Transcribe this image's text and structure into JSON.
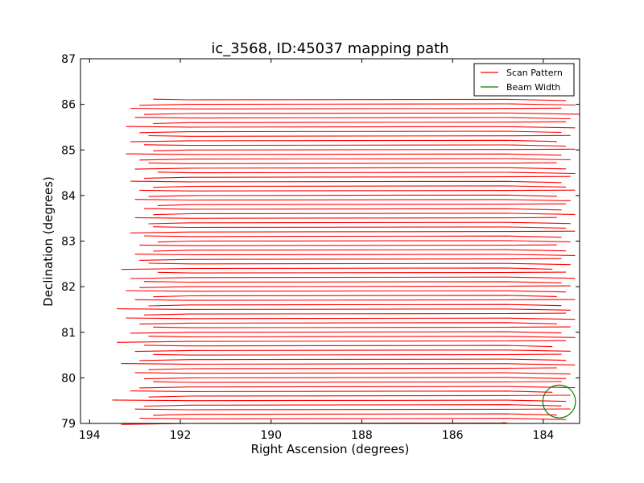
{
  "chart_data": {
    "type": "line",
    "title": "ic_3568, ID:45037 mapping path",
    "xlabel": "Right Ascension (degrees)",
    "ylabel": "Declination (degrees)",
    "xlim": [
      194.2,
      183.2
    ],
    "ylim": [
      79,
      87
    ],
    "x_ticks": [
      "194",
      "192",
      "190",
      "188",
      "186",
      "184"
    ],
    "y_ticks": [
      "79",
      "80",
      "81",
      "82",
      "83",
      "84",
      "85",
      "86",
      "87"
    ],
    "x_axis_reversed": true,
    "legend_position": "top-right",
    "series": [
      {
        "name": "Scan Pattern",
        "color": "#ff0000",
        "dec_start": 79.0,
        "dec_end": 86.1,
        "dec_step": 0.1,
        "ra_inner_left": 191.8,
        "ra_inner_right": 184.8,
        "ra_outer_left": [
          193.3,
          192.9,
          192.6,
          193.0,
          192.8,
          193.5,
          192.7,
          193.1,
          192.9,
          192.6,
          192.8,
          193.0,
          192.7,
          193.3,
          192.9,
          192.6,
          193.0,
          192.8,
          193.4,
          192.7,
          193.1,
          192.6,
          192.9,
          193.2,
          192.8,
          193.4,
          192.7,
          193.0,
          192.6,
          193.2,
          192.9,
          192.8,
          193.1,
          192.5,
          193.3,
          192.7,
          192.9,
          193.0,
          192.6,
          192.9,
          192.5,
          192.8,
          193.1,
          192.6,
          192.7,
          193.0,
          192.6,
          192.8,
          192.5,
          193.0,
          192.7,
          192.9,
          192.6,
          193.1,
          192.8,
          192.5,
          193.0,
          192.7,
          192.9,
          193.2,
          192.6,
          192.8,
          193.1,
          192.7,
          192.9,
          193.2,
          192.6,
          193.0,
          192.8,
          193.1,
          192.9,
          192.6
        ],
        "ra_outer_right": [
          184.9,
          183.5,
          183.7,
          183.4,
          183.6,
          183.5,
          183.4,
          183.8,
          183.3,
          183.6,
          183.5,
          183.4,
          183.7,
          183.3,
          183.5,
          183.6,
          183.4,
          183.8,
          183.5,
          183.3,
          183.6,
          183.4,
          183.7,
          183.3,
          183.5,
          183.4,
          183.6,
          183.3,
          183.7,
          183.5,
          183.4,
          183.6,
          183.3,
          183.5,
          183.8,
          183.4,
          183.6,
          183.3,
          183.5,
          183.7,
          183.4,
          183.6,
          183.3,
          183.5,
          183.4,
          183.7,
          183.3,
          183.6,
          183.5,
          183.4,
          183.7,
          183.3,
          183.5,
          183.6,
          183.4,
          183.3,
          183.5,
          183.7,
          183.4,
          183.6,
          183.3,
          183.5,
          183.7,
          183.4,
          183.6,
          183.3,
          183.5,
          183.4,
          183.2,
          183.6,
          183.3,
          183.5
        ]
      },
      {
        "name": "Beam Width",
        "color": "#008000",
        "shape": "circle",
        "center": [
          183.65,
          79.48
        ],
        "radius_deg": 0.36
      }
    ]
  }
}
